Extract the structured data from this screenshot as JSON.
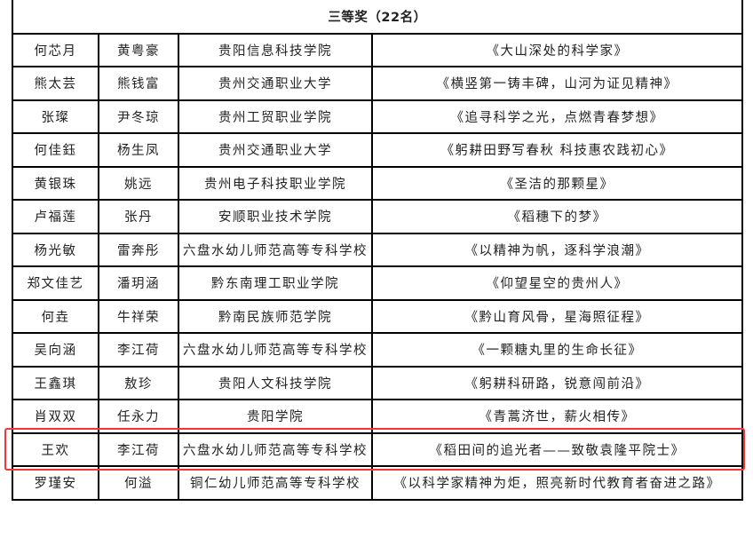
{
  "section_title": "三等奖（22名）",
  "highlight_color": "#f0353b",
  "rows": [
    [
      "何芯月",
      "黄粤豪",
      "贵阳信息科技学院",
      "《大山深处的科学家》"
    ],
    [
      "熊太芸",
      "熊钱富",
      "贵州交通职业大学",
      "《横竖第一铸丰碑，山河为证见精神》"
    ],
    [
      "张璨",
      "尹冬琼",
      "贵州工贸职业学院",
      "《追寻科学之光，点燃青春梦想》"
    ],
    [
      "何佳鈺",
      "杨生凤",
      "贵州交通职业大学",
      "《躬耕田野写春秋 科技惠农践初心》"
    ],
    [
      "黄银珠",
      "姚远",
      "贵州电子科技职业学院",
      "《圣洁的那颗星》"
    ],
    [
      "卢福莲",
      "张丹",
      "安顺职业技术学院",
      "《稻穗下的梦》"
    ],
    [
      "杨光敏",
      "雷奔彤",
      "六盘水幼儿师范高等专科学校",
      "《以精神为帆，逐科学浪潮》"
    ],
    [
      "郑文佳艺",
      "潘玥涵",
      "黔东南理工职业学院",
      "《仰望星空的贵州人》"
    ],
    [
      "何垚",
      "牛祥荣",
      "黔南民族师范学院",
      "《黔山育风骨，星海照征程》"
    ],
    [
      "吴向涵",
      "李江荷",
      "六盘水幼儿师范高等专科学校",
      "《一颗糖丸里的生命长征》"
    ],
    [
      "王鑫琪",
      "敖珍",
      "贵阳人文科技学院",
      "《躬耕科研路，锐意闯前沿》"
    ],
    [
      "肖双双",
      "任永力",
      "贵阳学院",
      "《青蒿济世，薪火相传》"
    ],
    [
      "王欢",
      "李江荷",
      "六盘水幼儿师范高等专科学校",
      "《稻田间的追光者——致敬袁隆平院士》"
    ],
    [
      "罗瑾安",
      "何溢",
      "铜仁幼儿师范高等专科学校",
      "《以科学家精神为炬，照亮新时代教育者奋进之路》"
    ]
  ]
}
